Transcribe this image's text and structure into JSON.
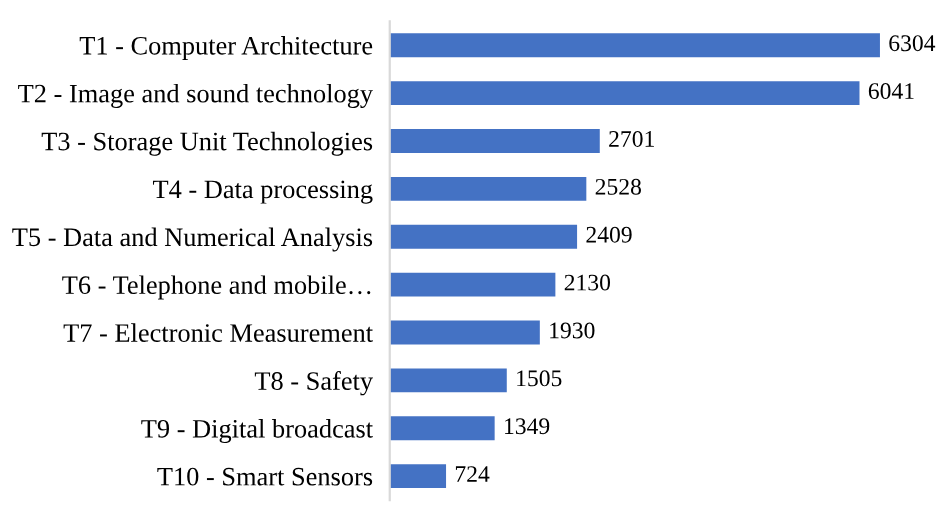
{
  "chart_data": {
    "type": "bar",
    "orientation": "horizontal",
    "categories": [
      "T1 - Computer Architecture",
      "T2 - Image and sound technology",
      "T3 - Storage Unit Technologies",
      "T4 - Data processing",
      "T5 - Data and Numerical Analysis",
      "T6 - Telephone and mobile…",
      "T7 - Electronic Measurement",
      "T8 - Safety",
      "T9 - Digital broadcast",
      "T10 - Smart Sensors"
    ],
    "values": [
      6304,
      6041,
      2701,
      2528,
      2409,
      2130,
      1930,
      1505,
      1349,
      724
    ],
    "color": "#4472c4",
    "data_labels": true,
    "grid": false,
    "legend": false
  }
}
